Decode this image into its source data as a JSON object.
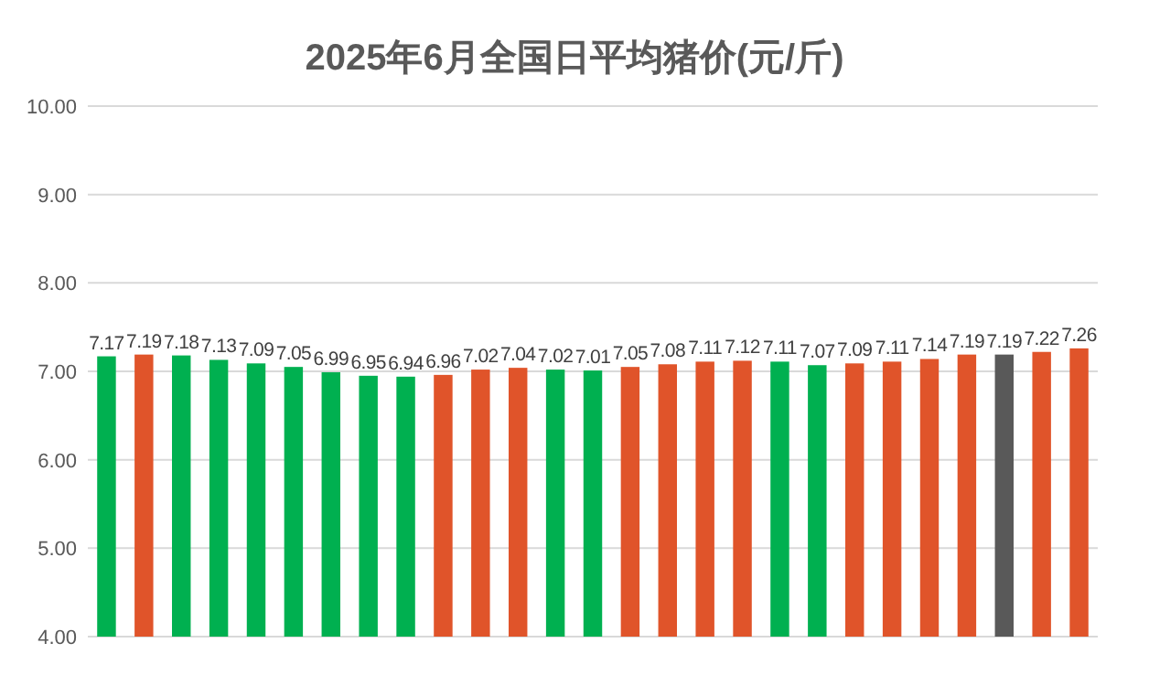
{
  "chart_data": {
    "type": "bar",
    "title": "2025年6月全国日平均猪价(元/斤)",
    "categories": [
      null,
      null,
      null,
      null,
      null,
      null,
      null,
      null,
      null,
      null,
      null,
      null,
      null,
      null,
      null,
      null,
      null,
      null,
      null,
      null,
      null,
      null,
      null,
      null,
      null,
      null,
      null
    ],
    "values": [
      7.17,
      7.19,
      7.18,
      7.13,
      7.09,
      7.05,
      6.99,
      6.95,
      6.94,
      6.96,
      7.02,
      7.04,
      7.02,
      7.01,
      7.05,
      7.08,
      7.11,
      7.12,
      7.11,
      7.07,
      7.09,
      7.11,
      7.14,
      7.19,
      7.19,
      7.22,
      7.26
    ],
    "colors": [
      "#00b050",
      "#e0542a",
      "#00b050",
      "#00b050",
      "#00b050",
      "#00b050",
      "#00b050",
      "#00b050",
      "#00b050",
      "#e0542a",
      "#e0542a",
      "#e0542a",
      "#00b050",
      "#00b050",
      "#e0542a",
      "#e0542a",
      "#e0542a",
      "#e0542a",
      "#00b050",
      "#00b050",
      "#e0542a",
      "#e0542a",
      "#e0542a",
      "#e0542a",
      "#595959",
      "#e0542a",
      "#e0542a"
    ],
    "ylim": [
      4,
      10
    ],
    "yticks": [
      {
        "value": 4,
        "label": "4.00"
      },
      {
        "value": 5,
        "label": "5.00"
      },
      {
        "value": 6,
        "label": "6.00"
      },
      {
        "value": 7,
        "label": "7.00"
      },
      {
        "value": 8,
        "label": "8.00"
      },
      {
        "value": 9,
        "label": "9.00"
      },
      {
        "value": 10,
        "label": "10.00"
      }
    ],
    "grid": "y",
    "data_labels": true
  }
}
